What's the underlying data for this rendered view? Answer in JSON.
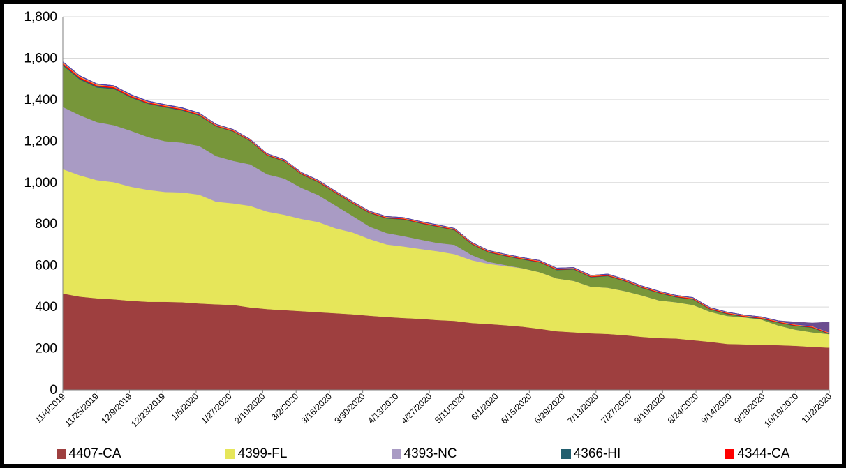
{
  "chart_data": {
    "type": "area",
    "stacked": true,
    "title": "",
    "xlabel": "",
    "ylabel": "",
    "ylim": [
      0,
      1800
    ],
    "y_ticks": [
      "0",
      "200",
      "400",
      "600",
      "800",
      "1,000",
      "1,200",
      "1,400",
      "1,600",
      "1,800"
    ],
    "grid": "horizontal",
    "legend_position": "bottom",
    "x_tick_labels": [
      "11/4/2019",
      "11/25/2019",
      "12/9/2019",
      "12/23/2019",
      "1/6/2020",
      "1/27/2020",
      "2/10/2020",
      "3/2/2020",
      "3/16/2020",
      "3/30/2020",
      "4/13/2020",
      "4/27/2020",
      "5/11/2020",
      "6/1/2020",
      "6/15/2020",
      "6/29/2020",
      "7/13/2020",
      "7/27/2020",
      "8/10/2020",
      "8/24/2020",
      "9/14/2020",
      "9/28/2020",
      "10/19/2020",
      "11/2/2020"
    ],
    "series": [
      {
        "name": "4407-CA",
        "color": "#9E3F3F",
        "legend": true,
        "values": [
          465,
          450,
          442,
          437,
          430,
          425,
          425,
          423,
          417,
          413,
          410,
          398,
          390,
          385,
          380,
          375,
          370,
          365,
          358,
          352,
          347,
          343,
          337,
          333,
          323,
          318,
          312,
          305,
          295,
          283,
          278,
          273,
          270,
          264,
          256,
          250,
          248,
          240,
          232,
          222,
          220,
          217,
          216,
          213,
          208,
          204
        ]
      },
      {
        "name": "4399-FL",
        "color": "#E6E65A",
        "legend": true,
        "values": [
          600,
          585,
          570,
          565,
          550,
          540,
          530,
          530,
          525,
          495,
          490,
          490,
          470,
          460,
          445,
          435,
          410,
          395,
          370,
          350,
          345,
          337,
          332,
          322,
          303,
          290,
          285,
          282,
          273,
          255,
          248,
          225,
          223,
          213,
          200,
          182,
          175,
          170,
          145,
          135,
          130,
          123,
          95,
          78,
          70,
          65
        ]
      },
      {
        "name": "4393-NC",
        "color": "#A99BC4",
        "legend": true,
        "values": [
          300,
          290,
          280,
          275,
          270,
          255,
          245,
          240,
          235,
          220,
          205,
          200,
          180,
          175,
          150,
          130,
          110,
          80,
          60,
          55,
          50,
          45,
          40,
          45,
          25,
          10,
          5,
          0,
          0,
          0,
          0,
          0,
          0,
          0,
          0,
          0,
          0,
          0,
          0,
          0,
          0,
          0,
          0,
          0,
          0,
          0
        ]
      },
      {
        "name": "",
        "color": "#77963A",
        "legend": false,
        "values": [
          200,
          172,
          167,
          175,
          160,
          160,
          163,
          155,
          146,
          143,
          141,
          112,
          90,
          82,
          65,
          62,
          60,
          60,
          65,
          70,
          80,
          78,
          78,
          70,
          52,
          45,
          43,
          42,
          47,
          40,
          55,
          45,
          56,
          47,
          36,
          35,
          24,
          26,
          11,
          9,
          2,
          3,
          13,
          17,
          22,
          0
        ]
      },
      {
        "name": "4366-HI",
        "color": "#215E6E",
        "legend": true,
        "values": [
          5,
          5,
          5,
          4,
          3,
          3,
          3,
          3,
          3,
          2,
          2,
          2,
          2,
          2,
          2,
          2,
          2,
          2,
          2,
          2,
          2,
          2,
          2,
          2,
          2,
          2,
          2,
          2,
          2,
          2,
          2,
          2,
          2,
          2,
          2,
          2,
          2,
          2,
          2,
          2,
          2,
          2,
          2,
          2,
          2,
          2
        ]
      },
      {
        "name": "4344-CA",
        "color": "#FF0000",
        "legend": true,
        "values": [
          6,
          6,
          5,
          5,
          5,
          4,
          4,
          4,
          4,
          3,
          3,
          3,
          3,
          3,
          3,
          3,
          3,
          3,
          3,
          3,
          3,
          3,
          3,
          3,
          3,
          3,
          3,
          3,
          3,
          3,
          3,
          3,
          3,
          3,
          3,
          3,
          3,
          3,
          3,
          3,
          3,
          3,
          3,
          3,
          3,
          3
        ]
      },
      {
        "name": "",
        "color": "#F79646",
        "legend": false,
        "values": [
          5,
          5,
          5,
          4,
          4,
          4,
          4,
          4,
          4,
          4,
          4,
          3,
          3,
          3,
          3,
          3,
          3,
          3,
          3,
          3,
          3,
          3,
          3,
          3,
          3,
          3,
          3,
          3,
          3,
          3,
          3,
          3,
          3,
          3,
          3,
          3,
          3,
          3,
          3,
          3,
          3,
          3,
          3,
          3,
          3,
          3
        ]
      },
      {
        "name": "",
        "color": "#2F36D6",
        "legend": false,
        "values": [
          3,
          3,
          3,
          3,
          3,
          3,
          3,
          3,
          3,
          2,
          2,
          2,
          2,
          2,
          2,
          2,
          2,
          2,
          2,
          2,
          2,
          2,
          2,
          2,
          2,
          2,
          2,
          2,
          2,
          2,
          2,
          2,
          2,
          2,
          2,
          2,
          2,
          2,
          2,
          2,
          2,
          2,
          2,
          2,
          2,
          2
        ]
      },
      {
        "name": "",
        "color": "#6B4C8F",
        "legend": false,
        "values": [
          0,
          0,
          0,
          0,
          0,
          0,
          0,
          0,
          0,
          0,
          0,
          0,
          0,
          0,
          0,
          0,
          0,
          0,
          0,
          0,
          0,
          0,
          0,
          0,
          0,
          0,
          0,
          0,
          0,
          0,
          0,
          0,
          0,
          0,
          0,
          0,
          0,
          0,
          0,
          0,
          0,
          0,
          0,
          10,
          13,
          48
        ]
      }
    ]
  }
}
